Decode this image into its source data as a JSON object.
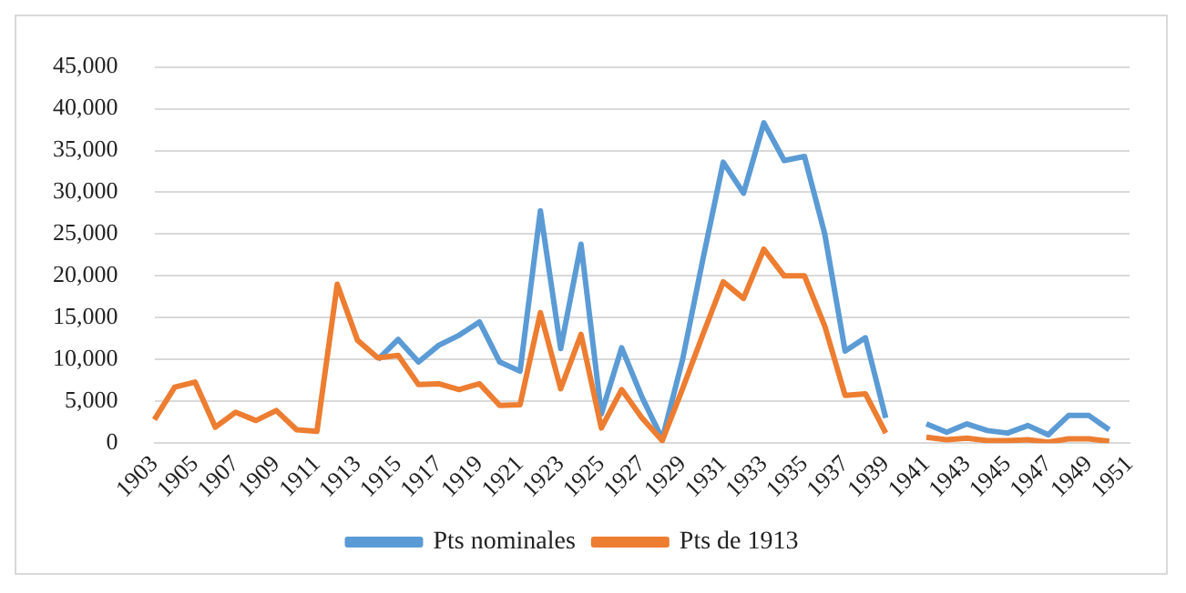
{
  "chart_data": {
    "type": "line",
    "categories": [
      "1903",
      null,
      "1905",
      null,
      "1907",
      null,
      "1909",
      null,
      "1911",
      null,
      "1913",
      null,
      "1915",
      null,
      "1917",
      null,
      "1919",
      null,
      "1921",
      null,
      "1923",
      null,
      "1925",
      null,
      "1927",
      null,
      "1929",
      null,
      "1931",
      null,
      "1933",
      null,
      "1935",
      null,
      "1937",
      null,
      "1939",
      null,
      "1941",
      null,
      "1943",
      null,
      "1945",
      null,
      "1947",
      null,
      "1949",
      null,
      "1951"
    ],
    "series": [
      {
        "name": "Pts nominales",
        "color": "#5b9bd5",
        "values": [
          null,
          null,
          null,
          null,
          null,
          null,
          null,
          null,
          null,
          null,
          null,
          10000,
          12400,
          9700,
          11700,
          12900,
          14500,
          9700,
          8600,
          27800,
          11300,
          23800,
          3500,
          11400,
          5500,
          500,
          10000,
          22000,
          33600,
          29900,
          38300,
          33800,
          34300,
          25000,
          11000,
          12600,
          3000,
          null,
          2300,
          1300,
          2300,
          1500,
          1200,
          2100,
          1000,
          3300,
          3300,
          1600,
          null
        ]
      },
      {
        "name": "Pts de 1913",
        "color": "#ed7d31",
        "values": [
          2800,
          6700,
          7300,
          1900,
          3700,
          2700,
          3900,
          1600,
          1400,
          19000,
          12300,
          10200,
          10500,
          7000,
          7100,
          6400,
          7100,
          4500,
          4600,
          15600,
          6500,
          13000,
          1800,
          6400,
          3000,
          300,
          6500,
          13000,
          19300,
          17300,
          23200,
          20000,
          20000,
          14000,
          5700,
          5900,
          1200,
          null,
          700,
          400,
          600,
          300,
          300,
          400,
          100,
          500,
          500,
          200,
          null
        ]
      }
    ],
    "ylim": [
      0,
      45000
    ],
    "yticks": [
      {
        "value": 0,
        "label": "0"
      },
      {
        "value": 5000,
        "label": "5,000"
      },
      {
        "value": 10000,
        "label": "10,000"
      },
      {
        "value": 15000,
        "label": "15,000"
      },
      {
        "value": 20000,
        "label": "20,000"
      },
      {
        "value": 25000,
        "label": "25,000"
      },
      {
        "value": 30000,
        "label": "30,000"
      },
      {
        "value": 35000,
        "label": "35,000"
      },
      {
        "value": 40000,
        "label": "40,000"
      },
      {
        "value": 45000,
        "label": "45,000"
      }
    ],
    "grid": "y",
    "legend": "bottom",
    "marker": "none",
    "line_style": "solid"
  }
}
